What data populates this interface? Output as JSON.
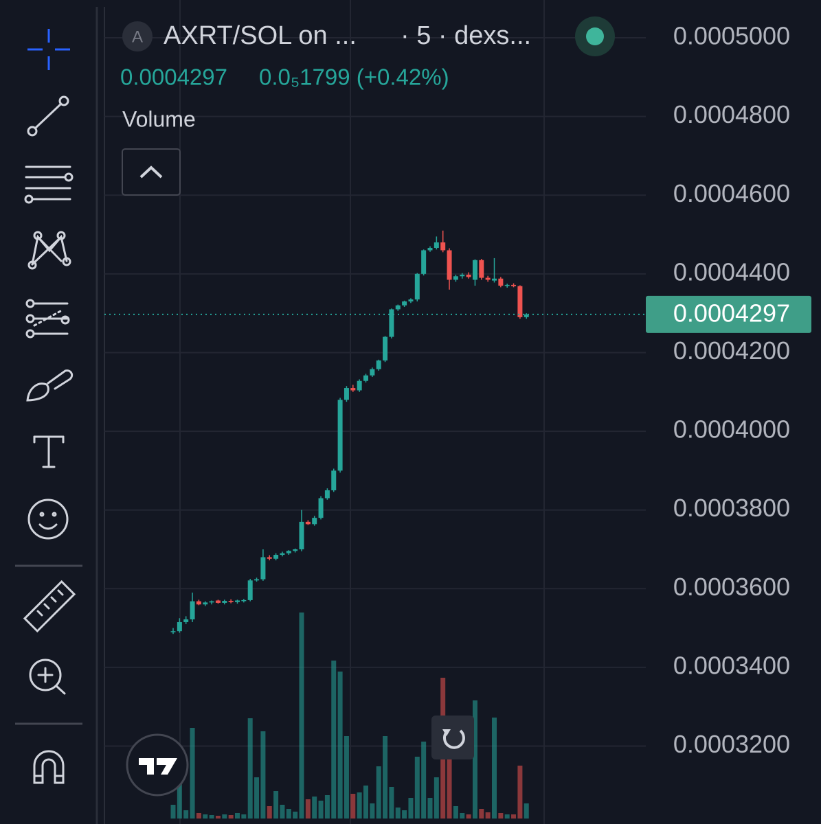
{
  "ui": {
    "avatar": "A",
    "symbol": "AXRT/SOL on ...",
    "interval": "· 5 · dexs...",
    "change": "0.0₅1799 (+0.42%)",
    "indicator": "Volume"
  },
  "chart_data": {
    "type": "candlestick",
    "open": [
      0.000349,
      0.0003492,
      0.0003515,
      0.0003522,
      0.0003568,
      0.000356,
      0.0003565,
      0.000357,
      0.0003564,
      0.0003569,
      0.0003566,
      0.000357,
      0.0003571,
      0.0003621,
      0.0003624,
      0.000368,
      0.0003676,
      0.0003686,
      0.000369,
      0.0003696,
      0.00037,
      0.000377,
      0.0003764,
      0.000378,
      0.000383,
      0.000385,
      0.00039,
      0.000408,
      0.000411,
      0.0004104,
      0.0004128,
      0.0004142,
      0.0004158,
      0.000418,
      0.000424,
      0.000431,
      0.000432,
      0.000433,
      0.0004335,
      0.00044,
      0.000446,
      0.0004466,
      0.000448,
      0.000446,
      0.0004385,
      0.0004394,
      0.0004398,
      0.0004385,
      0.0004435,
      0.000439,
      0.0004383,
      0.0004388,
      0.000437,
      0.0004372,
      0.0004369,
      0.000429
    ],
    "high": [
      0.00035,
      0.0003525,
      0.000353,
      0.000359,
      0.0003572,
      0.0003568,
      0.000357,
      0.0003572,
      0.0003572,
      0.0003573,
      0.0003572,
      0.0003574,
      0.0003625,
      0.0003628,
      0.00037,
      0.0003685,
      0.000369,
      0.0003694,
      0.0003698,
      0.0003702,
      0.00038,
      0.0003774,
      0.0003785,
      0.0003835,
      0.0003855,
      0.0003905,
      0.0004085,
      0.0004115,
      0.0004118,
      0.0004132,
      0.0004146,
      0.0004162,
      0.0004182,
      0.0004242,
      0.0004312,
      0.0004322,
      0.0004332,
      0.0004338,
      0.0004402,
      0.0004462,
      0.000447,
      0.0004495,
      0.000451,
      0.0004465,
      0.0004398,
      0.0004402,
      0.0004404,
      0.0004437,
      0.0004438,
      0.0004395,
      0.000444,
      0.0004392,
      0.0004375,
      0.0004376,
      0.0004371,
      0.00043
    ],
    "low": [
      0.0003485,
      0.0003488,
      0.000351,
      0.0003515,
      0.0003558,
      0.0003556,
      0.000356,
      0.0003562,
      0.000356,
      0.0003563,
      0.0003562,
      0.0003565,
      0.0003568,
      0.0003618,
      0.000362,
      0.0003672,
      0.0003672,
      0.0003682,
      0.0003686,
      0.0003692,
      0.0003695,
      0.0003762,
      0.000376,
      0.0003776,
      0.0003826,
      0.0003846,
      0.0003895,
      0.0004075,
      0.00041,
      0.00041,
      0.0004124,
      0.0004138,
      0.0004154,
      0.0004176,
      0.0004236,
      0.0004306,
      0.0004316,
      0.0004326,
      0.000433,
      0.0004396,
      0.0004456,
      0.0004462,
      0.0004455,
      0.000436,
      0.000438,
      0.0004388,
      0.0004388,
      0.000437,
      0.0004385,
      0.000438,
      0.0004378,
      0.0004366,
      0.0004365,
      0.0004366,
      0.0004286,
      0.0004286
    ],
    "close": [
      0.0003492,
      0.0003515,
      0.0003522,
      0.0003568,
      0.000356,
      0.0003565,
      0.0003568,
      0.0003564,
      0.0003569,
      0.0003566,
      0.000357,
      0.0003571,
      0.0003621,
      0.0003624,
      0.000368,
      0.0003676,
      0.0003686,
      0.000369,
      0.0003696,
      0.00037,
      0.000377,
      0.0003764,
      0.000378,
      0.000383,
      0.000385,
      0.00039,
      0.000408,
      0.000411,
      0.0004104,
      0.0004128,
      0.0004142,
      0.0004158,
      0.000418,
      0.000424,
      0.000431,
      0.000432,
      0.000433,
      0.0004335,
      0.00044,
      0.000446,
      0.0004466,
      0.000448,
      0.000446,
      0.0004385,
      0.0004394,
      0.0004398,
      0.0004392,
      0.0004435,
      0.000439,
      0.0004385,
      0.0004388,
      0.000437,
      0.0004372,
      0.0004369,
      0.000429,
      0.0004297
    ],
    "volume": [
      20,
      55,
      12,
      132,
      8,
      6,
      5,
      4,
      6,
      5,
      8,
      6,
      146,
      60,
      127,
      18,
      40,
      20,
      14,
      10,
      300,
      28,
      32,
      26,
      34,
      230,
      214,
      120,
      36,
      38,
      48,
      22,
      76,
      120,
      46,
      16,
      12,
      30,
      90,
      112,
      30,
      60,
      205,
      150,
      18,
      8,
      6,
      172,
      14,
      9,
      147,
      8,
      6,
      6,
      77,
      22
    ],
    "up_color": "#26a69a",
    "down_color": "#ef5350",
    "ylim": [
      0.0003002,
      0.0005096
    ],
    "yticks": [
      {
        "value": 0.0005,
        "label": "0.0005000"
      },
      {
        "value": 0.00048,
        "label": "0.0004800"
      },
      {
        "value": 0.00046,
        "label": "0.0004600"
      },
      {
        "value": 0.00044,
        "label": "0.0004400"
      },
      {
        "value": 0.00042,
        "label": "0.0004200"
      },
      {
        "value": 0.0004,
        "label": "0.0004000"
      },
      {
        "value": 0.00038,
        "label": "0.0003800"
      },
      {
        "value": 0.00036,
        "label": "0.0003600"
      },
      {
        "value": 0.00034,
        "label": "0.0003400"
      },
      {
        "value": 0.00032,
        "label": "0.0003200"
      }
    ],
    "price_line": {
      "value": 0.0004297,
      "label": "0.0004297"
    },
    "grid": true
  }
}
